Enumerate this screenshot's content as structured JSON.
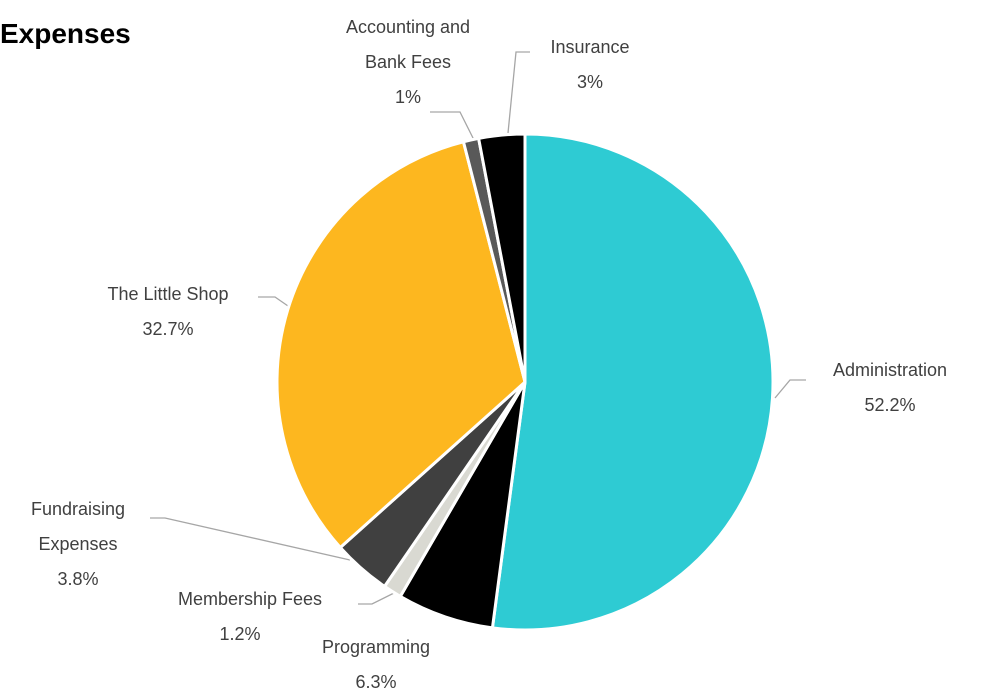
{
  "chart_data": {
    "type": "pie",
    "title": "Expenses",
    "categories": [
      "Administration",
      "Programming",
      "Membership Fees",
      "Fundraising Expenses",
      "The Little Shop",
      "Accounting and Bank Fees",
      "Insurance"
    ],
    "values": [
      52.2,
      6.3,
      1.2,
      3.8,
      32.7,
      1,
      3
    ],
    "value_labels": [
      "52.2%",
      "6.3%",
      "1.2%",
      "3.8%",
      "32.7%",
      "1%",
      "3%"
    ],
    "colors": [
      "#2ecbd3",
      "#000000",
      "#d9d9d2",
      "#404040",
      "#fdb71f",
      "#595959",
      "#000000"
    ]
  }
}
